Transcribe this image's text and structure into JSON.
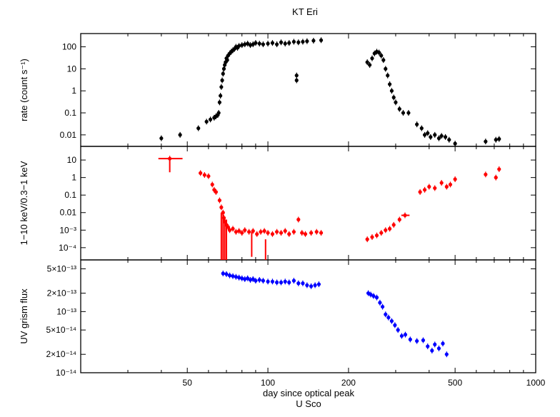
{
  "figure": {
    "title": "KT Eri",
    "x_label": "day since optical peak",
    "x_sublabel": "U Sco"
  },
  "chart_data": {
    "type": "scatter",
    "title": "KT Eri",
    "xlabel": "day since optical peak",
    "xsublabel": "U Sco",
    "xscale": "log",
    "xlim": [
      20,
      1000
    ],
    "xticks": [
      50,
      100,
      200,
      500,
      1000
    ],
    "panels": [
      {
        "name": "rate",
        "ylabel": "rate (count s⁻¹)",
        "yscale": "log",
        "ylim": [
          0.003,
          400
        ],
        "yticks": [
          0.01,
          0.1,
          1,
          10,
          100
        ],
        "ytick_labels": [
          "0.01",
          "0.1",
          "1",
          "10",
          "100"
        ],
        "color": "#000000",
        "points": [
          [
            40,
            0.007
          ],
          [
            47,
            0.01
          ],
          [
            55,
            0.02
          ],
          [
            59,
            0.04
          ],
          [
            61,
            0.05
          ],
          [
            63,
            0.06
          ],
          [
            64,
            0.07
          ],
          [
            65,
            0.08
          ],
          [
            65.5,
            0.1
          ],
          [
            66,
            0.3
          ],
          [
            66.5,
            0.6
          ],
          [
            67,
            1.5
          ],
          [
            67.5,
            3
          ],
          [
            68,
            6
          ],
          [
            68.5,
            10
          ],
          [
            69,
            15
          ],
          [
            69.5,
            20
          ],
          [
            70,
            30
          ],
          [
            70.5,
            25
          ],
          [
            71,
            40
          ],
          [
            72,
            50
          ],
          [
            73,
            60
          ],
          [
            74,
            70
          ],
          [
            75,
            80
          ],
          [
            76,
            100
          ],
          [
            77,
            90
          ],
          [
            78,
            110
          ],
          [
            80,
            120
          ],
          [
            82,
            130
          ],
          [
            84,
            140
          ],
          [
            86,
            120
          ],
          [
            88,
            130
          ],
          [
            90,
            150
          ],
          [
            93,
            140
          ],
          [
            96,
            130
          ],
          [
            100,
            140
          ],
          [
            104,
            150
          ],
          [
            108,
            130
          ],
          [
            112,
            160
          ],
          [
            116,
            140
          ],
          [
            120,
            150
          ],
          [
            125,
            170
          ],
          [
            128,
            3
          ],
          [
            128,
            5
          ],
          [
            130,
            160
          ],
          [
            135,
            170
          ],
          [
            140,
            180
          ],
          [
            148,
            190
          ],
          [
            158,
            200
          ],
          [
            235,
            20
          ],
          [
            240,
            15
          ],
          [
            245,
            30
          ],
          [
            250,
            50
          ],
          [
            255,
            60
          ],
          [
            260,
            55
          ],
          [
            265,
            40
          ],
          [
            270,
            25
          ],
          [
            275,
            10
          ],
          [
            280,
            5
          ],
          [
            285,
            2
          ],
          [
            290,
            1
          ],
          [
            295,
            0.5
          ],
          [
            300,
            0.3
          ],
          [
            310,
            0.15
          ],
          [
            320,
            0.1
          ],
          [
            335,
            0.1
          ],
          [
            360,
            0.03
          ],
          [
            375,
            0.02
          ],
          [
            385,
            0.01
          ],
          [
            395,
            0.012
          ],
          [
            405,
            0.008
          ],
          [
            420,
            0.01
          ],
          [
            435,
            0.007
          ],
          [
            445,
            0.009
          ],
          [
            460,
            0.008
          ],
          [
            475,
            0.006
          ],
          [
            500,
            0.004
          ],
          [
            650,
            0.005
          ],
          [
            710,
            0.006
          ],
          [
            730,
            0.0065
          ]
        ]
      },
      {
        "name": "hardness",
        "ylabel": "1−10 keV/0.3−1 keV",
        "yscale": "log",
        "ylim": [
          2e-05,
          60
        ],
        "yticks": [
          0.0001,
          0.001,
          0.01,
          0.1,
          1,
          10
        ],
        "ytick_labels": [
          "10⁻⁴",
          "10⁻³",
          "0.01",
          "0.1",
          "1",
          "10"
        ],
        "color": "#ff0000",
        "points": [
          [
            43,
            12
          ],
          [
            56,
            1.8
          ],
          [
            58,
            1.4
          ],
          [
            60,
            1.2
          ],
          [
            62,
            0.4
          ],
          [
            63,
            0.2
          ],
          [
            64,
            0.15
          ],
          [
            66,
            0.05
          ],
          [
            67,
            0.02
          ],
          [
            68,
            0.01
          ],
          [
            68.5,
            0.005
          ],
          [
            69,
            0.003
          ],
          [
            70,
            0.002
          ],
          [
            71,
            0.0015
          ],
          [
            72,
            0.001
          ],
          [
            74,
            0.0012
          ],
          [
            76,
            0.0008
          ],
          [
            78,
            0.0009
          ],
          [
            80,
            0.0007
          ],
          [
            82,
            0.001
          ],
          [
            85,
            0.0008
          ],
          [
            88,
            0.0009
          ],
          [
            91,
            0.0006
          ],
          [
            94,
            0.0008
          ],
          [
            97,
            0.0009
          ],
          [
            100,
            0.0007
          ],
          [
            104,
            0.0006
          ],
          [
            108,
            0.0008
          ],
          [
            112,
            0.0007
          ],
          [
            116,
            0.0009
          ],
          [
            120,
            0.0006
          ],
          [
            125,
            0.0008
          ],
          [
            130,
            0.004
          ],
          [
            134,
            0.0007
          ],
          [
            138,
            0.0006
          ],
          [
            145,
            0.0007
          ],
          [
            152,
            0.0008
          ],
          [
            158,
            0.0007
          ],
          [
            235,
            0.0003
          ],
          [
            245,
            0.0004
          ],
          [
            255,
            0.0005
          ],
          [
            265,
            0.0007
          ],
          [
            275,
            0.001
          ],
          [
            285,
            0.0012
          ],
          [
            295,
            0.002
          ],
          [
            310,
            0.004
          ],
          [
            325,
            0.007
          ],
          [
            370,
            0.15
          ],
          [
            385,
            0.2
          ],
          [
            400,
            0.3
          ],
          [
            420,
            0.25
          ],
          [
            445,
            0.5
          ],
          [
            465,
            0.3
          ],
          [
            480,
            0.4
          ],
          [
            500,
            0.8
          ],
          [
            650,
            1.5
          ],
          [
            710,
            1.0
          ],
          [
            730,
            3
          ]
        ],
        "errorbars": [
          {
            "x": 43,
            "xlo": 39,
            "xhi": 48,
            "y": 12,
            "ylo": 2,
            "yhi": 12
          },
          {
            "x": 67,
            "y": 0.002,
            "ylo": 2e-05,
            "yhi": 0.01
          },
          {
            "x": 68,
            "y": 0.002,
            "ylo": 2e-05,
            "yhi": 0.01
          },
          {
            "x": 69,
            "y": 0.002,
            "ylo": 2e-05,
            "yhi": 0.005
          },
          {
            "x": 70,
            "y": 0.001,
            "ylo": 2e-05,
            "yhi": 0.004
          },
          {
            "x": 87,
            "y": 0.0001,
            "ylo": 3e-05,
            "yhi": 0.0008
          },
          {
            "x": 98,
            "y": 5e-05,
            "ylo": 2e-05,
            "yhi": 0.0003
          },
          {
            "x": 325,
            "xlo": 315,
            "xhi": 338,
            "y": 0.007,
            "ylo": 0.007,
            "yhi": 0.007
          }
        ]
      },
      {
        "name": "uv",
        "ylabel": "UV grism flux",
        "yscale": "log",
        "ylim": [
          1e-14,
          7e-13
        ],
        "yticks": [
          1e-14,
          2e-14,
          5e-14,
          1e-13,
          2e-13,
          5e-13
        ],
        "ytick_labels": [
          "10⁻¹⁴",
          "2×10⁻¹⁴",
          "5×10⁻¹⁴",
          "10⁻¹³",
          "2×10⁻¹³",
          "5×10⁻¹³"
        ],
        "color": "#0000ff",
        "points": [
          [
            68,
            4.2e-13
          ],
          [
            70,
            4.1e-13
          ],
          [
            72,
            3.9e-13
          ],
          [
            74,
            3.8e-13
          ],
          [
            76,
            3.7e-13
          ],
          [
            78,
            3.6e-13
          ],
          [
            80,
            3.5e-13
          ],
          [
            82,
            3.4e-13
          ],
          [
            84,
            3.5e-13
          ],
          [
            86,
            3.3e-13
          ],
          [
            88,
            3.4e-13
          ],
          [
            90,
            3.2e-13
          ],
          [
            93,
            3.3e-13
          ],
          [
            96,
            3.2e-13
          ],
          [
            100,
            3.1e-13
          ],
          [
            104,
            3.1e-13
          ],
          [
            108,
            3e-13
          ],
          [
            112,
            3e-13
          ],
          [
            116,
            3.1e-13
          ],
          [
            120,
            3e-13
          ],
          [
            125,
            3.2e-13
          ],
          [
            130,
            2.9e-13
          ],
          [
            135,
            2.9e-13
          ],
          [
            140,
            2.7e-13
          ],
          [
            145,
            2.6e-13
          ],
          [
            150,
            2.7e-13
          ],
          [
            155,
            2.8e-13
          ],
          [
            237,
            2e-13
          ],
          [
            242,
            1.9e-13
          ],
          [
            248,
            1.8e-13
          ],
          [
            255,
            1.7e-13
          ],
          [
            262,
            1.4e-13
          ],
          [
            268,
            1.2e-13
          ],
          [
            275,
            9e-14
          ],
          [
            282,
            8e-14
          ],
          [
            290,
            7e-14
          ],
          [
            298,
            6e-14
          ],
          [
            306,
            5e-14
          ],
          [
            316,
            4e-14
          ],
          [
            326,
            4.2e-14
          ],
          [
            340,
            3.5e-14
          ],
          [
            360,
            3.3e-14
          ],
          [
            380,
            3.4e-14
          ],
          [
            395,
            2.7e-14
          ],
          [
            410,
            2.3e-14
          ],
          [
            420,
            2.9e-14
          ],
          [
            435,
            2.5e-14
          ],
          [
            450,
            3e-14
          ],
          [
            465,
            2e-14
          ]
        ]
      }
    ]
  }
}
